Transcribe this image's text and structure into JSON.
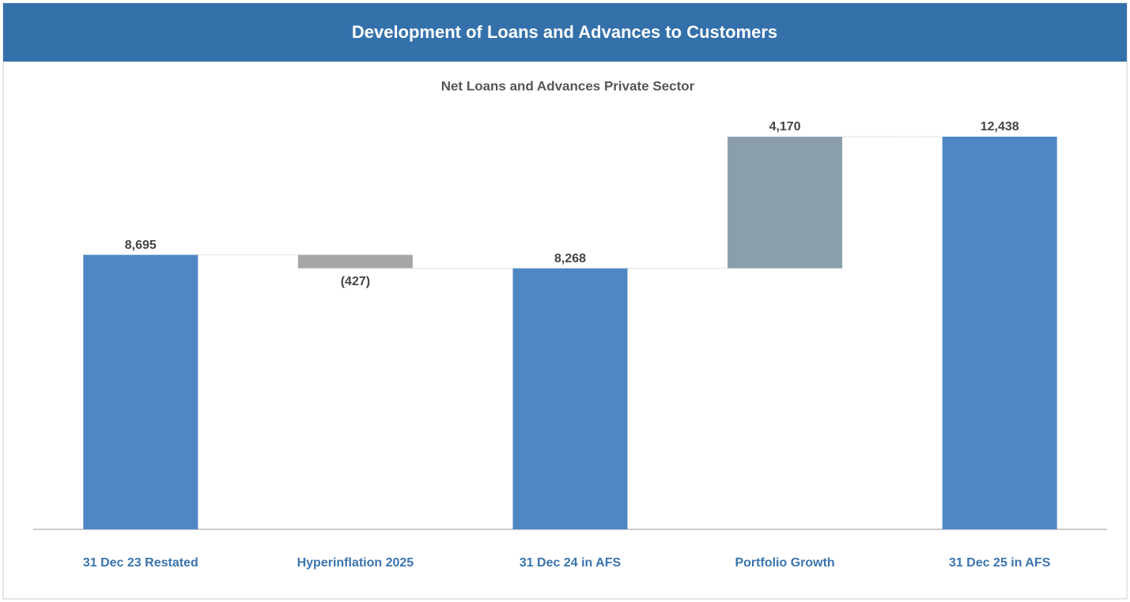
{
  "chart_data": {
    "type": "waterfall",
    "title": "Development of Loans and Advances to Customers",
    "subtitle": "Net Loans and Advances Private Sector",
    "categories": [
      "31 Dec 23 Restated",
      "Hyperinflation 2025",
      "31 Dec 24  in AFS",
      "Portfolio Growth",
      "31 Dec 25 in AFS"
    ],
    "values": [
      8695,
      -427,
      8268,
      4170,
      12438
    ],
    "value_labels": [
      "8,695",
      "(427)",
      "8,268",
      "4,170",
      "12,438"
    ],
    "measure": [
      "absolute",
      "relative",
      "absolute",
      "relative",
      "absolute"
    ],
    "colors": [
      "#4f87c5",
      "#a6a6a6",
      "#4f87c5",
      "#8a9faa",
      "#4f87c5"
    ]
  }
}
